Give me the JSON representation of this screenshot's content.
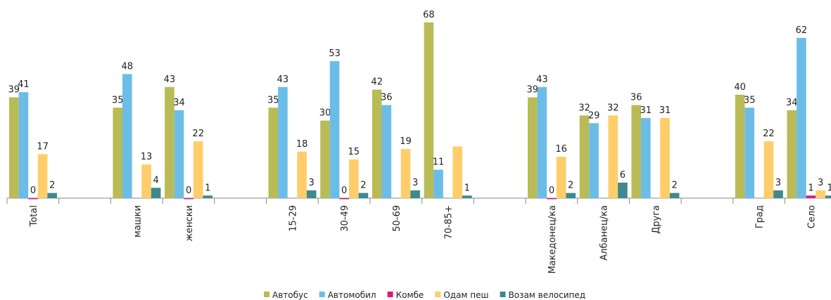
{
  "chart_data": {
    "type": "bar",
    "categories": [
      "Total",
      null,
      "машки",
      "женски",
      null,
      "15-29",
      "30-49",
      "50-69",
      "70-85+",
      null,
      "Македонец/ка",
      "Албанец/ка",
      "Друга",
      null,
      "Град",
      "Село"
    ],
    "series": [
      {
        "name": "Автобус",
        "color": "#b9bb56",
        "values": [
          39,
          null,
          35,
          43,
          null,
          35,
          30,
          42,
          68,
          null,
          39,
          32,
          36,
          null,
          40,
          34
        ]
      },
      {
        "name": "Автомобил",
        "color": "#6bbde8",
        "values": [
          41,
          null,
          48,
          34,
          null,
          43,
          53,
          36,
          11,
          null,
          43,
          29,
          31,
          null,
          35,
          62
        ]
      },
      {
        "name": "Комбе",
        "color": "#e0177a",
        "values": [
          0,
          null,
          null,
          0,
          null,
          null,
          0,
          null,
          null,
          null,
          0,
          null,
          null,
          null,
          null,
          1
        ]
      },
      {
        "name": "Одам пеш",
        "color": "#ffcd69",
        "values": [
          17,
          null,
          13,
          22,
          null,
          18,
          15,
          19,
          20,
          null,
          16,
          32,
          31,
          null,
          22,
          3
        ],
        "value_labels": [
          "17",
          null,
          "13",
          "22",
          null,
          "18",
          "15",
          "19",
          null,
          null,
          "16",
          "32",
          "31",
          null,
          "22",
          "3"
        ]
      },
      {
        "name": "Возам велосипед",
        "color": "#3e898d",
        "values": [
          2,
          null,
          4,
          1,
          null,
          3,
          2,
          3,
          1,
          null,
          2,
          6,
          2,
          null,
          3,
          1
        ]
      }
    ],
    "ylim": [
      0,
      70
    ],
    "legend": "bottom"
  }
}
